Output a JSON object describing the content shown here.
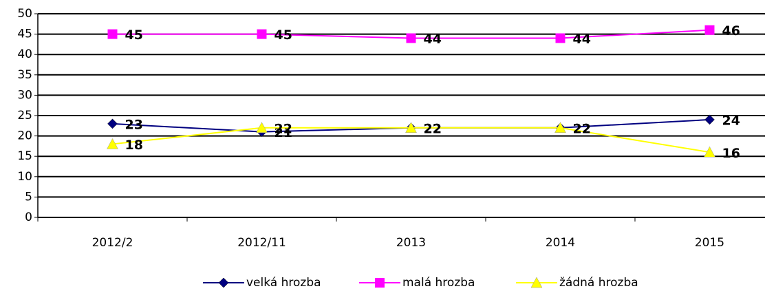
{
  "chart_data": {
    "type": "line",
    "categories": [
      "2012/2",
      "2012/11",
      "2013",
      "2014",
      "2015"
    ],
    "series": [
      {
        "name": "velká hrozba",
        "color": "#000080",
        "marker": "diamond",
        "values": [
          23,
          21,
          22,
          22,
          24
        ]
      },
      {
        "name": "malá hrozba",
        "color": "#ff00ff",
        "marker": "square",
        "values": [
          45,
          45,
          44,
          44,
          46
        ]
      },
      {
        "name": "žádná hrozba",
        "color": "#ffff00",
        "marker": "triangle",
        "values": [
          18,
          22,
          22,
          22,
          16
        ]
      }
    ],
    "ylim": [
      0,
      50
    ],
    "yticks": [
      0,
      5,
      10,
      15,
      20,
      25,
      30,
      35,
      40,
      45,
      50
    ],
    "grid": true,
    "legend": "bottom"
  }
}
